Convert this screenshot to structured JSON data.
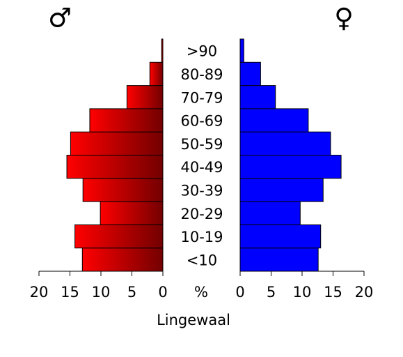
{
  "chart_data": {
    "type": "pyramid",
    "xlabel": "Lingewaal",
    "center_label": "%",
    "categories": [
      "<10",
      "10-19",
      "20-29",
      "30-39",
      "40-49",
      "50-59",
      "60-69",
      "70-79",
      "80-89",
      ">90"
    ],
    "series": [
      {
        "name": "♂",
        "color": "#ff0000",
        "side": "left",
        "values": [
          13.0,
          14.2,
          10.1,
          12.9,
          15.5,
          14.9,
          11.8,
          5.8,
          2.1,
          0.2
        ]
      },
      {
        "name": "♀",
        "color": "#0000ff",
        "side": "right",
        "values": [
          12.6,
          13.0,
          9.7,
          13.4,
          16.3,
          14.6,
          11.0,
          5.7,
          3.3,
          0.6
        ]
      }
    ],
    "xlim": [
      0,
      20
    ],
    "xticks": [
      0,
      5,
      10,
      15,
      20
    ]
  }
}
